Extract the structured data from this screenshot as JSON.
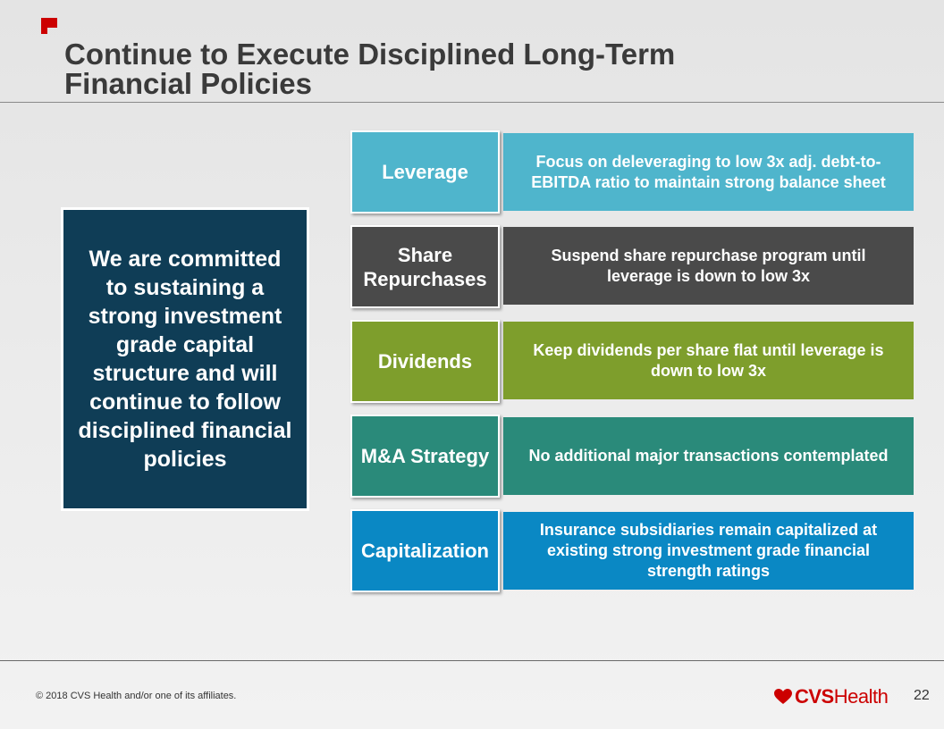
{
  "header": {
    "title_line1": "Continue to Execute Disciplined Long-Term",
    "title_line2": "Financial Policies",
    "brand_icon": "cvs-flag-icon"
  },
  "commitment": {
    "text": "We are committed to sustaining a strong investment grade capital structure and will continue to follow disciplined financial policies"
  },
  "policies": [
    {
      "label": "Leverage",
      "description": "Focus on deleveraging to low 3x adj. debt-to-EBITDA ratio to maintain strong balance sheet",
      "label_color": "#4fb5cc",
      "desc_color": "#4fb5cc"
    },
    {
      "label": "Share Repurchases",
      "description": "Suspend share repurchase program until leverage is down to low 3x",
      "label_color": "#4a4a4a",
      "desc_color": "#4a4a4a"
    },
    {
      "label": "Dividends",
      "description": "Keep dividends per share flat until leverage is down to low 3x",
      "label_color": "#7e9e2c",
      "desc_color": "#7e9e2c"
    },
    {
      "label": "M&A Strategy",
      "description": "No additional major transactions contemplated",
      "label_color": "#2a8a7a",
      "desc_color": "#2a8a7a"
    },
    {
      "label": "Capitalization",
      "description": "Insurance subsidiaries remain capitalized at existing strong investment grade financial strength ratings",
      "label_color": "#0a88c4",
      "desc_color": "#0a88c4"
    }
  ],
  "footer": {
    "copyright": "© 2018 CVS Health and/or one of its affiliates.",
    "logo_cvs": "CVS",
    "logo_health": "Health",
    "logo_icon": "heart-icon",
    "page_number": "22"
  }
}
